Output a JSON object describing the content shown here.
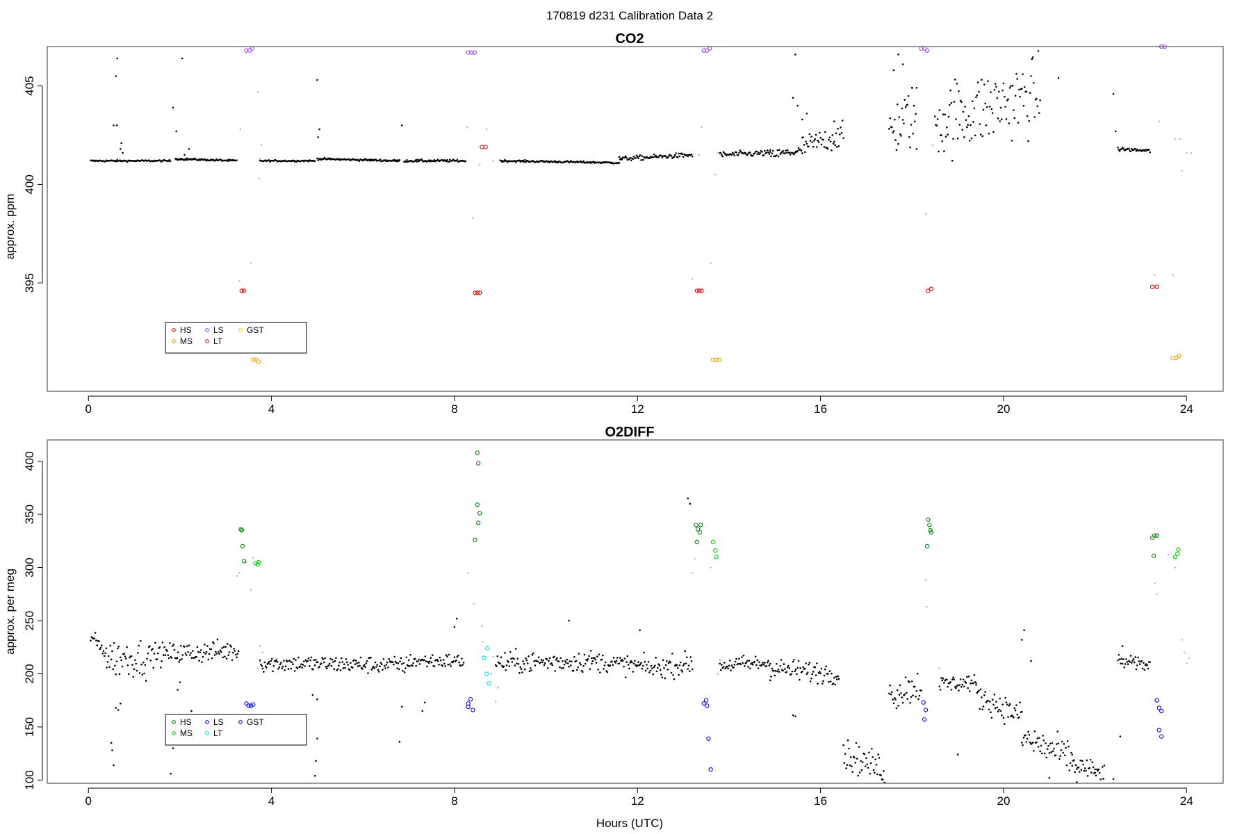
{
  "figure": {
    "title": "170819   d231   Calibration Data 2",
    "xlabel": "Hours (UTC)"
  },
  "chart_data": [
    {
      "type": "scatter",
      "title": "CO2",
      "xlabel": "",
      "ylabel": "approx. ppm",
      "xlim": [
        -0.9,
        24.8
      ],
      "ylim": [
        389.5,
        407.0
      ],
      "xticks": [
        0,
        4,
        8,
        12,
        16,
        20,
        24
      ],
      "yticks": [
        395,
        400,
        405
      ],
      "legend": {
        "position": "bottom-left",
        "entries": [
          {
            "label": "HS",
            "color": "#e00000"
          },
          {
            "label": "LS",
            "color": "#a040ff"
          },
          {
            "label": "GST",
            "color": "#f0d000"
          },
          {
            "label": "MS",
            "color": "#f0a000"
          },
          {
            "label": "LT",
            "color": "#c02020"
          }
        ]
      },
      "colors": {
        "sample": "#000000",
        "flagged": "#bbbbbb"
      },
      "series": [
        {
          "name": "HS",
          "color": "#e00000",
          "points": [
            [
              3.35,
              394.6
            ],
            [
              3.4,
              394.6
            ],
            [
              8.45,
              394.5
            ],
            [
              8.5,
              394.5
            ],
            [
              8.55,
              394.5
            ],
            [
              13.3,
              394.6
            ],
            [
              13.35,
              394.6
            ],
            [
              13.4,
              394.6
            ],
            [
              18.35,
              394.6
            ],
            [
              18.42,
              394.7
            ],
            [
              23.25,
              394.8
            ],
            [
              23.35,
              394.8
            ]
          ]
        },
        {
          "name": "LS",
          "color": "#a040ff",
          "points": [
            [
              3.45,
              406.8
            ],
            [
              3.52,
              406.8
            ],
            [
              3.58,
              406.9
            ],
            [
              8.3,
              406.7
            ],
            [
              8.37,
              406.7
            ],
            [
              8.44,
              406.7
            ],
            [
              13.45,
              406.8
            ],
            [
              13.52,
              406.8
            ],
            [
              13.58,
              406.9
            ],
            [
              18.2,
              406.9
            ],
            [
              18.27,
              406.9
            ],
            [
              18.33,
              406.8
            ],
            [
              23.45,
              407.0
            ],
            [
              23.52,
              407.0
            ],
            [
              23.58,
              407.1
            ]
          ]
        },
        {
          "name": "MS",
          "color": "#f0a000",
          "points": [
            [
              3.6,
              391.1
            ],
            [
              3.66,
              391.1
            ],
            [
              3.72,
              391.0
            ],
            [
              13.65,
              391.1
            ],
            [
              13.72,
              391.1
            ],
            [
              13.78,
              391.1
            ],
            [
              23.7,
              391.2
            ],
            [
              23.77,
              391.2
            ],
            [
              23.83,
              391.3
            ]
          ]
        },
        {
          "name": "LT",
          "color": "#c02020",
          "points": [
            [
              8.6,
              401.9
            ],
            [
              8.68,
              401.9
            ]
          ]
        },
        {
          "name": "GST",
          "color": "#f0d000",
          "points": []
        }
      ],
      "sample_segments": [
        [
          0.05,
          1.8,
          401.2,
          401.2,
          0.04
        ],
        [
          1.9,
          3.25,
          401.3,
          401.2,
          0.05
        ],
        [
          3.75,
          4.95,
          401.2,
          401.2,
          0.04
        ],
        [
          5.0,
          6.8,
          401.3,
          401.2,
          0.05
        ],
        [
          6.9,
          8.25,
          401.2,
          401.2,
          0.06
        ],
        [
          9.0,
          11.6,
          401.2,
          401.1,
          0.05
        ],
        [
          11.6,
          13.2,
          401.3,
          401.5,
          0.12
        ],
        [
          13.8,
          14.9,
          401.5,
          401.6,
          0.15
        ],
        [
          14.9,
          15.6,
          401.5,
          401.7,
          0.25
        ],
        [
          15.6,
          16.5,
          401.9,
          402.5,
          0.6
        ],
        [
          17.5,
          18.1,
          402.8,
          403.6,
          1.6
        ],
        [
          18.5,
          20.8,
          403.2,
          404.6,
          1.9
        ],
        [
          22.5,
          23.2,
          401.8,
          401.7,
          0.1
        ]
      ],
      "sample_extra": [
        [
          0.55,
          403.0
        ],
        [
          0.62,
          403.0
        ],
        [
          0.6,
          405.5
        ],
        [
          0.63,
          406.4
        ],
        [
          0.7,
          401.8
        ],
        [
          0.75,
          401.6
        ],
        [
          0.72,
          402.1
        ],
        [
          1.85,
          403.9
        ],
        [
          1.92,
          402.7
        ],
        [
          2.05,
          406.4
        ],
        [
          2.1,
          401.5
        ],
        [
          2.2,
          401.8
        ],
        [
          5.0,
          405.3
        ],
        [
          5.05,
          402.8
        ],
        [
          5.02,
          402.4
        ],
        [
          6.85,
          403.0
        ],
        [
          15.45,
          406.6
        ],
        [
          15.4,
          404.4
        ],
        [
          15.5,
          404.0
        ],
        [
          15.6,
          403.3
        ],
        [
          15.7,
          403.6
        ],
        [
          16.3,
          403.2
        ],
        [
          17.6,
          405.8
        ],
        [
          17.7,
          406.6
        ],
        [
          17.8,
          406.1
        ],
        [
          18.0,
          404.9
        ],
        [
          18.1,
          401.8
        ],
        [
          19.1,
          407.1
        ],
        [
          19.35,
          407.2
        ],
        [
          20.75,
          407.1
        ],
        [
          21.2,
          405.4
        ],
        [
          22.4,
          404.6
        ],
        [
          22.45,
          402.7
        ]
      ],
      "flagged_points": [
        [
          3.3,
          395.1
        ],
        [
          3.32,
          402.8
        ],
        [
          3.55,
          396.0
        ],
        [
          3.7,
          404.7
        ],
        [
          3.73,
          400.3
        ],
        [
          3.75,
          401.3
        ],
        [
          3.78,
          402.0
        ],
        [
          8.28,
          402.9
        ],
        [
          8.4,
          398.3
        ],
        [
          8.55,
          401.0
        ],
        [
          8.7,
          402.8
        ],
        [
          8.85,
          401.2
        ],
        [
          13.2,
          395.2
        ],
        [
          13.35,
          401.5
        ],
        [
          13.4,
          402.9
        ],
        [
          13.6,
          396.0
        ],
        [
          13.7,
          400.5
        ],
        [
          13.75,
          401.6
        ],
        [
          18.3,
          398.5
        ],
        [
          18.45,
          402.0
        ],
        [
          23.3,
          395.4
        ],
        [
          23.4,
          403.2
        ],
        [
          23.7,
          395.4
        ],
        [
          23.75,
          402.3
        ],
        [
          23.85,
          402.3
        ],
        [
          23.9,
          400.7
        ],
        [
          24.0,
          401.6
        ],
        [
          24.1,
          401.6
        ]
      ]
    },
    {
      "type": "scatter",
      "title": "O2DIFF",
      "xlabel": "Hours (UTC)",
      "ylabel": "approx. per meg",
      "xlim": [
        -0.9,
        24.8
      ],
      "ylim": [
        97,
        420
      ],
      "xticks": [
        0,
        4,
        8,
        12,
        16,
        20,
        24
      ],
      "yticks": [
        100,
        150,
        200,
        250,
        300,
        350,
        400
      ],
      "legend": {
        "position": "bottom-left",
        "entries": [
          {
            "label": "HS",
            "color": "#007a00"
          },
          {
            "label": "LS",
            "color": "#0000ee"
          },
          {
            "label": "GST",
            "color": "#0000aa"
          },
          {
            "label": "MS",
            "color": "#00cc00"
          },
          {
            "label": "LT",
            "color": "#00e0e0"
          }
        ]
      },
      "colors": {
        "sample": "#000000",
        "flagged": "#bbbbbb"
      },
      "series": [
        {
          "name": "HS",
          "color": "#007a00",
          "points": [
            [
              3.33,
              336
            ],
            [
              3.35,
              335
            ],
            [
              3.37,
              320
            ],
            [
              3.4,
              306
            ],
            [
              8.45,
              326
            ],
            [
              8.5,
              359
            ],
            [
              8.52,
              342
            ],
            [
              8.55,
              351
            ],
            [
              8.5,
              408
            ],
            [
              8.52,
              398
            ],
            [
              13.28,
              340
            ],
            [
              13.32,
              336
            ],
            [
              13.36,
              333
            ],
            [
              13.38,
              340
            ],
            [
              13.3,
              324
            ],
            [
              18.35,
              345
            ],
            [
              18.38,
              340
            ],
            [
              18.4,
              335
            ],
            [
              18.42,
              333
            ],
            [
              18.33,
              320
            ],
            [
              23.25,
              328
            ],
            [
              23.3,
              330
            ],
            [
              23.35,
              330
            ],
            [
              23.28,
              311
            ]
          ]
        },
        {
          "name": "LS",
          "color": "#0000ee",
          "points": [
            [
              3.45,
              172
            ],
            [
              3.5,
              170
            ],
            [
              3.55,
              170
            ],
            [
              3.6,
              171
            ],
            [
              8.3,
              172
            ],
            [
              8.35,
              176
            ],
            [
              8.4,
              166
            ],
            [
              8.3,
              169
            ],
            [
              13.45,
              172
            ],
            [
              13.5,
              175
            ],
            [
              13.52,
              170
            ],
            [
              13.55,
              139
            ],
            [
              13.6,
              110
            ],
            [
              18.25,
              173
            ],
            [
              18.3,
              166
            ],
            [
              18.27,
              157
            ],
            [
              23.35,
              175
            ],
            [
              23.4,
              168
            ],
            [
              23.45,
              165
            ],
            [
              23.4,
              147
            ],
            [
              23.45,
              141
            ]
          ]
        },
        {
          "name": "MS",
          "color": "#00cc00",
          "points": [
            [
              3.65,
              304
            ],
            [
              3.7,
              303
            ],
            [
              3.72,
              305
            ],
            [
              13.65,
              324
            ],
            [
              13.7,
              316
            ],
            [
              13.72,
              310
            ],
            [
              23.75,
              310
            ],
            [
              23.8,
              313
            ],
            [
              23.82,
              317
            ]
          ]
        },
        {
          "name": "LT",
          "color": "#00e0e0",
          "points": [
            [
              8.65,
              215
            ],
            [
              8.7,
              200
            ],
            [
              8.75,
              191
            ],
            [
              8.72,
              224
            ]
          ]
        },
        {
          "name": "GST",
          "color": "#0000aa",
          "points": []
        }
      ],
      "sample_segments": [
        [
          0.05,
          0.4,
          235,
          220,
          7
        ],
        [
          0.4,
          1.3,
          215,
          215,
          18
        ],
        [
          1.3,
          3.3,
          218,
          222,
          10
        ],
        [
          3.75,
          7.0,
          210,
          208,
          8
        ],
        [
          7.0,
          8.2,
          212,
          212,
          7
        ],
        [
          8.9,
          11.0,
          210,
          212,
          10
        ],
        [
          11.0,
          12.3,
          212,
          206,
          9
        ],
        [
          12.3,
          13.2,
          205,
          210,
          10
        ],
        [
          13.8,
          14.9,
          208,
          210,
          8
        ],
        [
          14.9,
          16.4,
          205,
          200,
          10
        ],
        [
          16.5,
          17.4,
          125,
          110,
          14
        ],
        [
          17.5,
          18.2,
          180,
          190,
          16
        ],
        [
          18.6,
          19.4,
          190,
          192,
          8
        ],
        [
          19.4,
          20.4,
          180,
          160,
          12
        ],
        [
          20.4,
          21.5,
          140,
          120,
          16
        ],
        [
          21.5,
          22.2,
          115,
          105,
          10
        ],
        [
          22.5,
          23.2,
          212,
          208,
          6
        ]
      ],
      "sample_extra": [
        [
          0.5,
          135
        ],
        [
          0.52,
          128
        ],
        [
          0.55,
          114
        ],
        [
          0.6,
          168
        ],
        [
          0.65,
          166
        ],
        [
          0.7,
          172
        ],
        [
          1.8,
          106
        ],
        [
          1.85,
          130
        ],
        [
          1.95,
          185
        ],
        [
          2.0,
          192
        ],
        [
          2.25,
          165
        ],
        [
          4.95,
          104
        ],
        [
          4.97,
          118
        ],
        [
          5.0,
          139
        ],
        [
          4.9,
          180
        ],
        [
          5.0,
          176
        ],
        [
          6.8,
          136
        ],
        [
          6.85,
          169
        ],
        [
          7.3,
          165
        ],
        [
          7.35,
          173
        ],
        [
          8.0,
          244
        ],
        [
          8.05,
          252
        ],
        [
          10.5,
          250
        ],
        [
          12.05,
          241
        ],
        [
          13.1,
          365
        ],
        [
          13.15,
          360
        ],
        [
          15.4,
          161
        ],
        [
          15.45,
          160
        ],
        [
          19.0,
          124
        ],
        [
          20.4,
          232
        ],
        [
          20.45,
          241
        ],
        [
          20.6,
          212
        ],
        [
          21.0,
          102
        ],
        [
          21.6,
          98
        ],
        [
          22.0,
          107
        ],
        [
          22.4,
          101
        ],
        [
          22.55,
          141
        ],
        [
          22.6,
          226
        ]
      ],
      "flagged_points": [
        [
          3.25,
          292
        ],
        [
          3.3,
          295
        ],
        [
          3.45,
          305
        ],
        [
          3.55,
          279
        ],
        [
          3.6,
          309
        ],
        [
          3.75,
          226
        ],
        [
          3.8,
          220
        ],
        [
          3.7,
          205
        ],
        [
          8.3,
          295
        ],
        [
          8.42,
          266
        ],
        [
          8.6,
          245
        ],
        [
          8.62,
          230
        ],
        [
          8.8,
          200
        ],
        [
          8.85,
          216
        ],
        [
          8.9,
          174
        ],
        [
          8.95,
          187
        ],
        [
          13.2,
          295
        ],
        [
          13.25,
          308
        ],
        [
          13.6,
          300
        ],
        [
          13.75,
          200
        ],
        [
          13.8,
          213
        ],
        [
          18.3,
          288
        ],
        [
          18.32,
          263
        ],
        [
          18.6,
          205
        ],
        [
          23.3,
          285
        ],
        [
          23.35,
          275
        ],
        [
          23.6,
          312
        ],
        [
          23.75,
          300
        ],
        [
          23.9,
          232
        ],
        [
          23.95,
          220
        ],
        [
          24.0,
          210
        ],
        [
          24.05,
          215
        ]
      ]
    }
  ]
}
